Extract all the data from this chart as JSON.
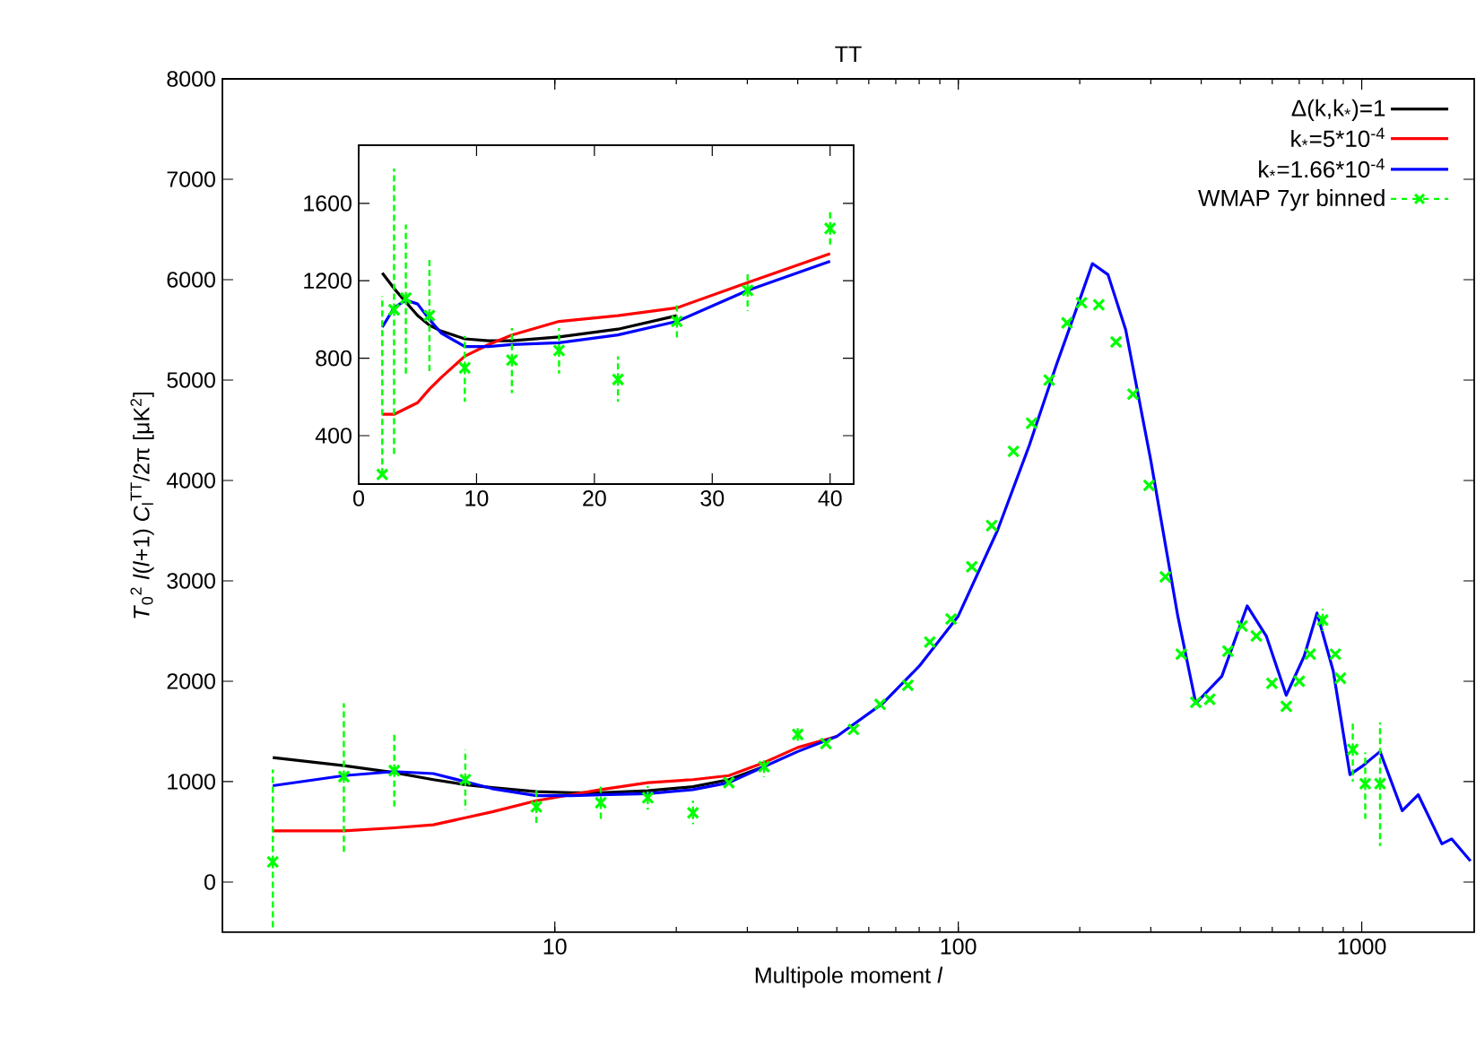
{
  "chart_data": [
    {
      "type": "line",
      "title": "TT",
      "xlabel": "Multipole moment *l*",
      "ylabel": "*T*$_{0}$$^{2}$ *l*(*l*+1) *C*$_{l}$$^{TT}$/2π [μK$^{2}$]",
      "log": "x",
      "xlim": [
        1.5,
        1900
      ],
      "ylim": [
        -500,
        8000
      ],
      "xticks": [
        10,
        100,
        1000
      ],
      "yticks": [
        0,
        1000,
        2000,
        3000,
        4000,
        5000,
        6000,
        7000,
        8000
      ],
      "legend": "top right",
      "series": [
        {
          "name": "Δ(k,k$_{*}$)=1",
          "color": "#000000",
          "x": [
            2,
            3,
            4,
            5,
            6,
            7,
            9,
            11,
            13,
            17,
            22,
            27,
            33
          ],
          "values": [
            1240,
            1160,
            1090,
            1020,
            970,
            940,
            900,
            890,
            890,
            910,
            950,
            1020,
            1150
          ]
        },
        {
          "name": "k$_{*}$=5*10$^{-4}$",
          "color": "#ff0000",
          "x": [
            2,
            3,
            4,
            5,
            6,
            7,
            9,
            11,
            13,
            17,
            22,
            27,
            33,
            40,
            50
          ],
          "values": [
            510,
            510,
            540,
            570,
            640,
            700,
            810,
            870,
            920,
            990,
            1020,
            1060,
            1190,
            1340,
            1450
          ]
        },
        {
          "name": "k$_{*}$=1.66*10$^{-4}$",
          "color": "#0000ff",
          "x": [
            2,
            3,
            4,
            5,
            6,
            7,
            9,
            11,
            13,
            17,
            22,
            27,
            33,
            40,
            50,
            65,
            80,
            100,
            125,
            150,
            175,
            200,
            215,
            235,
            260,
            300,
            350,
            388,
            450,
            520,
            580,
            650,
            720,
            775,
            850,
            935,
            1000,
            1110,
            1260,
            1380,
            1580,
            1670,
            1860
          ],
          "values": [
            960,
            1060,
            1100,
            1080,
            1000,
            930,
            860,
            860,
            870,
            880,
            920,
            990,
            1150,
            1300,
            1450,
            1780,
            2150,
            2650,
            3500,
            4350,
            5150,
            5800,
            6160,
            6050,
            5500,
            4200,
            2650,
            1780,
            2050,
            2750,
            2450,
            1860,
            2250,
            2680,
            2100,
            1070,
            1150,
            1300,
            710,
            870,
            380,
            430,
            210
          ]
        },
        {
          "name": "WMAP 7yr binned",
          "type": "scatter",
          "marker": "cross",
          "line_style": "dashed",
          "color": "#00ff00",
          "x": [
            2,
            3,
            4,
            6,
            9,
            13,
            17,
            22,
            27,
            33,
            40,
            47,
            55,
            64,
            75,
            85,
            96,
            108,
            121,
            137,
            152,
            168,
            186,
            202,
            223,
            246,
            271,
            297,
            326,
            357,
            388,
            420,
            466,
            505,
            548,
            599,
            650,
            700,
            745,
            800,
            860,
            885,
            950,
            1020,
            1110
          ],
          "values": [
            200,
            1050,
            1110,
            1020,
            750,
            790,
            840,
            690,
            990,
            1150,
            1470,
            1380,
            1520,
            1770,
            1960,
            2390,
            2620,
            3140,
            3550,
            4290,
            4570,
            5000,
            5570,
            5770,
            5750,
            5380,
            4860,
            3950,
            3040,
            2270,
            1790,
            1820,
            2300,
            2550,
            2450,
            1980,
            1750,
            2000,
            2270,
            2610,
            2270,
            2030,
            1320,
            980,
            980
          ],
          "errors": [
            [
              -480,
              1120
            ],
            [
              300,
              1780
            ],
            [
              720,
              1490
            ],
            [
              720,
              1320
            ],
            [
              575,
              915
            ],
            [
              620,
              955
            ],
            [
              720,
              955
            ],
            [
              575,
              810
            ],
            null,
            [
              1045,
              1240
            ],
            [
              1380,
              1560
            ],
            null,
            null,
            null,
            null,
            null,
            null,
            null,
            null,
            null,
            null,
            null,
            null,
            null,
            null,
            null,
            null,
            null,
            null,
            null,
            null,
            null,
            null,
            null,
            null,
            null,
            null,
            null,
            null,
            [
              2500,
              2720
            ],
            null,
            null,
            [
              1000,
              1610
            ],
            [
              630,
              1290
            ],
            [
              360,
              1590
            ]
          ]
        }
      ]
    },
    {
      "type": "line",
      "xlim": [
        0,
        42
      ],
      "ylim": [
        150,
        1900
      ],
      "xticks": [
        0,
        10,
        20,
        30,
        40
      ],
      "yticks": [
        400,
        800,
        1200,
        1600
      ],
      "series": [
        {
          "color": "#000000",
          "x": [
            2,
            3,
            4,
            5,
            6,
            7,
            9,
            11,
            13,
            17,
            22,
            27
          ],
          "values": [
            1240,
            1160,
            1090,
            1020,
            970,
            940,
            900,
            890,
            890,
            910,
            950,
            1020
          ]
        },
        {
          "color": "#ff0000",
          "x": [
            2,
            3,
            4,
            5,
            6,
            7,
            9,
            11,
            13,
            17,
            22,
            27,
            33,
            40
          ],
          "values": [
            510,
            510,
            540,
            570,
            640,
            700,
            810,
            870,
            920,
            990,
            1020,
            1060,
            1190,
            1340
          ]
        },
        {
          "color": "#0000ff",
          "x": [
            2,
            3,
            4,
            5,
            6,
            7,
            9,
            11,
            13,
            17,
            22,
            27,
            33,
            40
          ],
          "values": [
            960,
            1060,
            1100,
            1080,
            1000,
            930,
            860,
            860,
            870,
            880,
            920,
            990,
            1150,
            1300
          ]
        },
        {
          "type": "scatter",
          "marker": "cross",
          "line_style": "dashed",
          "color": "#00ff00",
          "x": [
            2,
            3,
            4,
            6,
            9,
            13,
            17,
            22,
            27,
            33,
            40
          ],
          "values": [
            200,
            1050,
            1110,
            1020,
            750,
            790,
            840,
            690,
            990,
            1150,
            1470
          ],
          "errors": [
            [
              200,
              1120
            ],
            [
              300,
              1780
            ],
            [
              720,
              1490
            ],
            [
              720,
              1320
            ],
            [
              575,
              915
            ],
            [
              620,
              955
            ],
            [
              720,
              955
            ],
            [
              575,
              810
            ],
            [
              890,
              1090
            ],
            [
              1045,
              1240
            ],
            [
              1380,
              1560
            ]
          ]
        }
      ]
    }
  ]
}
